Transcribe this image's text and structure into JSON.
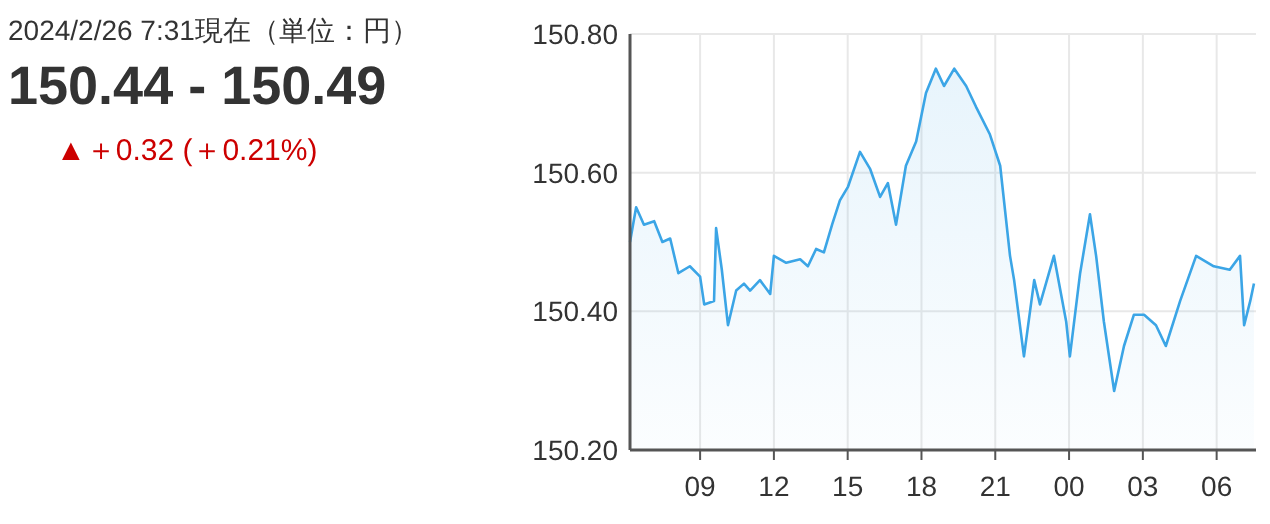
{
  "chart_data": {
    "type": "area",
    "title": "2024/2/26 7:31現在（単位：円）",
    "subtitle": "150.44 - 150.49",
    "annotations": [
      "▲＋0.32 (＋0.21%)"
    ],
    "color": "#3ba5e6",
    "grid": true,
    "xlim": [
      "2024-02-25T06:09",
      "2024-02-26T07:36"
    ],
    "xticks": [
      {
        "value": "2024-02-25T09:00",
        "label": "09"
      },
      {
        "value": "2024-02-25T12:00",
        "label": "12"
      },
      {
        "value": "2024-02-25T15:00",
        "label": "15"
      },
      {
        "value": "2024-02-25T18:00",
        "label": "18"
      },
      {
        "value": "2024-02-25T21:00",
        "label": "21"
      },
      {
        "value": "2024-02-26T00:00",
        "label": "00"
      },
      {
        "value": "2024-02-26T03:00",
        "label": "03"
      },
      {
        "value": "2024-02-26T06:00",
        "label": "06"
      }
    ],
    "ylim": [
      150.2,
      150.8
    ],
    "yticks": [
      {
        "value": 150.2,
        "label": "150.20"
      },
      {
        "value": 150.4,
        "label": "150.40"
      },
      {
        "value": 150.6,
        "label": "150.60"
      },
      {
        "value": 150.8,
        "label": "150.80"
      }
    ],
    "x": [
      "2024-02-25T06:09",
      "2024-02-25T06:24",
      "2024-02-25T06:43",
      "2024-02-25T07:08",
      "2024-02-25T07:28",
      "2024-02-25T07:47",
      "2024-02-25T08:07",
      "2024-02-25T08:35",
      "2024-02-25T09:00",
      "2024-02-25T09:10",
      "2024-02-25T09:34",
      "2024-02-25T09:39",
      "2024-02-25T09:53",
      "2024-02-25T10:08",
      "2024-02-25T10:28",
      "2024-02-25T10:47",
      "2024-02-25T11:02",
      "2024-02-25T11:26",
      "2024-02-25T11:51",
      "2024-02-25T12:00",
      "2024-02-25T12:30",
      "2024-02-25T13:04",
      "2024-02-25T13:23",
      "2024-02-25T13:43",
      "2024-02-25T14:02",
      "2024-02-25T14:22",
      "2024-02-25T14:41",
      "2024-02-25T15:01",
      "2024-02-25T15:30",
      "2024-02-25T15:55",
      "2024-02-25T16:19",
      "2024-02-25T16:38",
      "2024-02-25T16:58",
      "2024-02-25T17:22",
      "2024-02-25T17:47",
      "2024-02-25T18:11",
      "2024-02-25T18:35",
      "2024-02-25T18:55",
      "2024-02-25T19:20",
      "2024-02-25T19:49",
      "2024-02-25T20:13",
      "2024-02-25T20:47",
      "2024-02-25T21:12",
      "2024-02-25T21:36",
      "2024-02-25T21:46",
      "2024-02-25T22:10",
      "2024-02-25T22:35",
      "2024-02-25T22:49",
      "2024-02-25T23:23",
      "2024-02-25T23:53",
      "2024-02-26T00:02",
      "2024-02-26T00:27",
      "2024-02-26T00:51",
      "2024-02-26T01:06",
      "2024-02-26T01:25",
      "2024-02-26T01:50",
      "2024-02-26T02:14",
      "2024-02-26T02:38",
      "2024-02-26T03:03",
      "2024-02-26T03:32",
      "2024-02-26T03:56",
      "2024-02-26T04:31",
      "2024-02-26T05:10",
      "2024-02-26T05:53",
      "2024-02-26T06:32",
      "2024-02-26T06:57",
      "2024-02-26T07:07",
      "2024-02-26T07:22",
      "2024-02-26T07:31"
    ],
    "values": [
      150.5,
      150.55,
      150.525,
      150.53,
      150.5,
      150.505,
      150.455,
      150.465,
      150.45,
      150.41,
      150.415,
      150.52,
      150.46,
      150.38,
      150.43,
      150.44,
      150.43,
      150.445,
      150.425,
      150.48,
      150.47,
      150.475,
      150.465,
      150.49,
      150.485,
      150.525,
      150.56,
      150.58,
      150.63,
      150.605,
      150.565,
      150.585,
      150.525,
      150.61,
      150.645,
      150.715,
      150.75,
      150.725,
      150.75,
      150.725,
      150.695,
      150.655,
      150.61,
      150.48,
      150.445,
      150.335,
      150.445,
      150.41,
      150.48,
      150.385,
      150.335,
      150.455,
      150.54,
      150.48,
      150.385,
      150.285,
      150.35,
      150.395,
      150.395,
      150.38,
      150.35,
      150.415,
      150.48,
      150.465,
      150.46,
      150.48,
      150.38,
      150.415,
      150.44
    ]
  }
}
